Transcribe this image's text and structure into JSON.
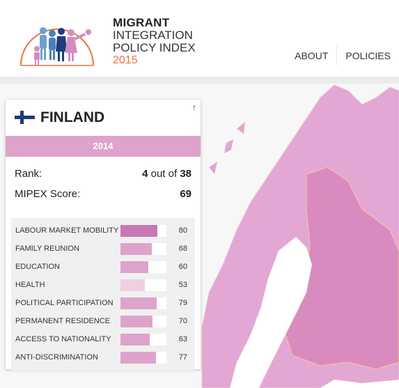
{
  "logo": {
    "line1": "MIGRANT",
    "line2": "INTEGRATION",
    "line3": "POLICY INDEX",
    "year": "2015"
  },
  "nav": [
    "ABOUT",
    "POLICIES"
  ],
  "card": {
    "country": "FINLAND",
    "year": "2014",
    "rank_label": "Rank:",
    "rank_value": "4",
    "rank_of": "out of",
    "rank_total": "38",
    "score_label": "MIPEX Score:",
    "score_value": "69",
    "collapse_icon": "arrow-up-icon",
    "policy_areas": [
      {
        "label": "LABOUR MARKET MOBILITY",
        "value": 80,
        "color": "#c978b5"
      },
      {
        "label": "FAMILY REUNION",
        "value": 68,
        "color": "#dea3cb"
      },
      {
        "label": "EDUCATION",
        "value": 60,
        "color": "#dea3cb"
      },
      {
        "label": "HEALTH",
        "value": 53,
        "color": "#eed0e3"
      },
      {
        "label": "POLITICAL PARTICIPATION",
        "value": 79,
        "color": "#dea3cb"
      },
      {
        "label": "PERMANENT RESIDENCE",
        "value": 70,
        "color": "#dea3cb"
      },
      {
        "label": "ACCESS TO NATIONALITY",
        "value": 63,
        "color": "#dea3cb"
      },
      {
        "label": "ANTI-DISCRIMINATION",
        "value": 77,
        "color": "#dea3cb"
      }
    ]
  },
  "colors": {
    "accent_pink": "#dea3cb",
    "dark_pink": "#c978b5",
    "logo_orange": "#e8743b",
    "flag_blue": "#1f3b7a"
  }
}
